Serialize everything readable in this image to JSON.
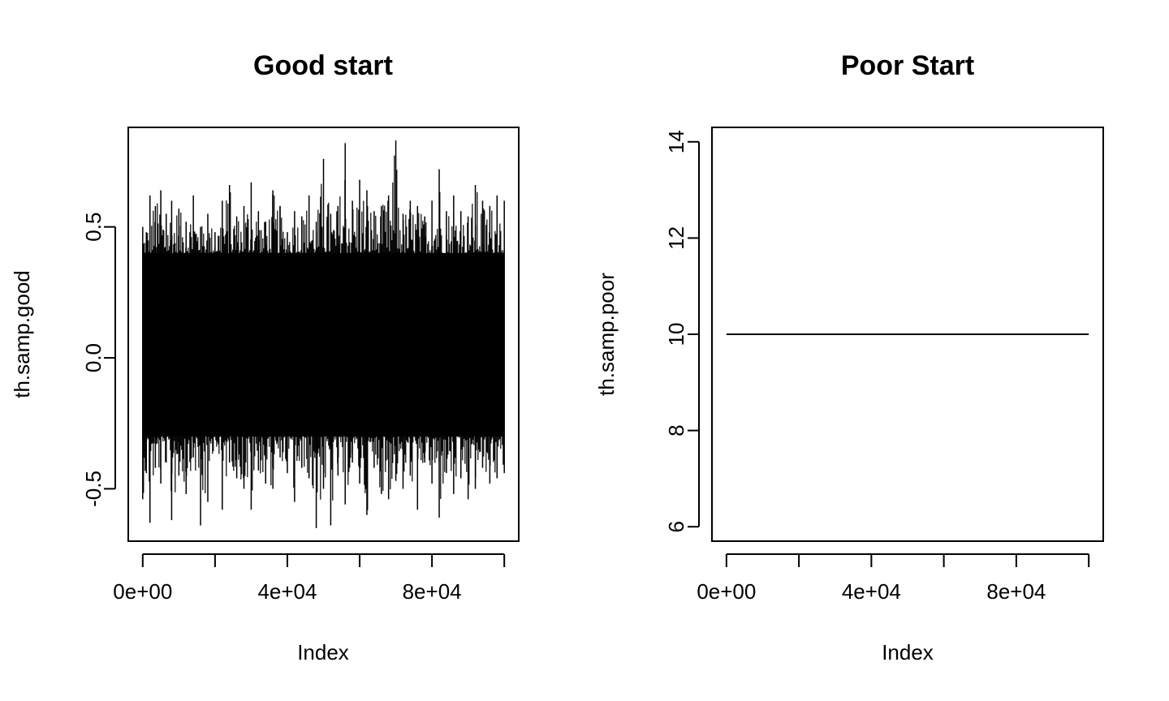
{
  "chart_data": [
    {
      "type": "line",
      "title": "Good start",
      "xlabel": "Index",
      "ylabel": "th.samp.good",
      "xlim": [
        -4000,
        104000
      ],
      "ylim": [
        -0.7,
        0.88
      ],
      "x_ticks": [
        0,
        20000,
        40000,
        60000,
        80000,
        100000
      ],
      "x_tick_labels": [
        "0e+00",
        "",
        "4e+04",
        "",
        "8e+04",
        ""
      ],
      "y_ticks": [
        -0.5,
        0.0,
        0.5
      ],
      "y_tick_labels": [
        "-0.5",
        "0.0",
        "0.5"
      ],
      "series": [
        {
          "name": "th.samp.good",
          "n": 100000,
          "center": 0.05,
          "band_low": -0.3,
          "band_high": 0.4,
          "x": [
            0,
            1000,
            2000,
            3500,
            5000,
            6500,
            8000,
            10000,
            12000,
            14000,
            16000,
            18000,
            20000,
            22000,
            24000,
            26000,
            28000,
            30000,
            32000,
            34000,
            36000,
            38000,
            40000,
            42000,
            44000,
            46000,
            48000,
            50000,
            52000,
            54000,
            56000,
            58000,
            60000,
            62000,
            64000,
            66000,
            68000,
            70000,
            72000,
            74000,
            76000,
            78000,
            80000,
            82000,
            84000,
            86000,
            88000,
            90000,
            92000,
            94000,
            96000,
            98000,
            100000
          ],
          "min": [
            -0.54,
            -0.44,
            -0.63,
            -0.42,
            -0.48,
            -0.4,
            -0.62,
            -0.45,
            -0.52,
            -0.38,
            -0.64,
            -0.55,
            -0.3,
            -0.58,
            -0.4,
            -0.46,
            -0.5,
            -0.58,
            -0.43,
            -0.48,
            -0.5,
            -0.38,
            -0.44,
            -0.55,
            -0.42,
            -0.46,
            -0.65,
            -0.5,
            -0.64,
            -0.45,
            -0.56,
            -0.4,
            -0.48,
            -0.6,
            -0.42,
            -0.52,
            -0.54,
            -0.47,
            -0.5,
            -0.45,
            -0.58,
            -0.4,
            -0.48,
            -0.61,
            -0.44,
            -0.52,
            -0.46,
            -0.54,
            -0.5,
            -0.42,
            -0.48,
            -0.46,
            -0.44
          ],
          "max": [
            0.5,
            0.48,
            0.62,
            0.58,
            0.64,
            0.55,
            0.6,
            0.57,
            0.52,
            0.62,
            0.5,
            0.55,
            0.48,
            0.6,
            0.66,
            0.54,
            0.58,
            0.67,
            0.56,
            0.52,
            0.64,
            0.58,
            0.48,
            0.56,
            0.54,
            0.62,
            0.52,
            0.76,
            0.55,
            0.58,
            0.82,
            0.6,
            0.68,
            0.64,
            0.56,
            0.58,
            0.62,
            0.83,
            0.55,
            0.6,
            0.58,
            0.54,
            0.6,
            0.72,
            0.56,
            0.62,
            0.56,
            0.54,
            0.66,
            0.6,
            0.58,
            0.62,
            0.6
          ]
        }
      ]
    },
    {
      "type": "line",
      "title": "Poor Start",
      "xlabel": "Index",
      "ylabel": "th.samp.poor",
      "xlim": [
        -4000,
        104000
      ],
      "ylim": [
        5.7,
        14.3
      ],
      "x_ticks": [
        0,
        20000,
        40000,
        60000,
        80000,
        100000
      ],
      "x_tick_labels": [
        "0e+00",
        "",
        "4e+04",
        "",
        "8e+04",
        ""
      ],
      "y_ticks": [
        6,
        8,
        10,
        12,
        14
      ],
      "y_tick_labels": [
        "6",
        "8",
        "10",
        "12",
        "14"
      ],
      "series": [
        {
          "name": "th.samp.poor",
          "x": [
            0,
            100000
          ],
          "y": [
            10,
            10
          ]
        }
      ]
    }
  ]
}
